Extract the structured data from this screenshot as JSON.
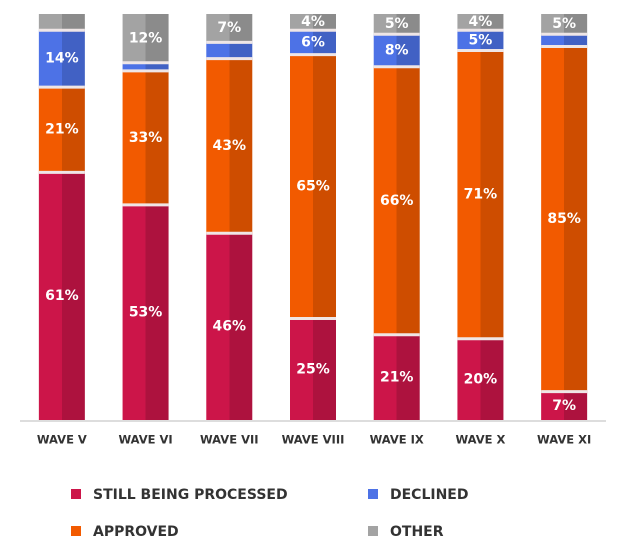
{
  "chart_data": {
    "type": "stacked_bar",
    "categories": [
      "WAVE V",
      "WAVE VI",
      "WAVE VII",
      "WAVE VIII",
      "WAVE IX",
      "WAVE X",
      "WAVE XI"
    ],
    "series": [
      {
        "name": "STILL BEING PROCESSED",
        "color": "#cc1549",
        "values": [
          61,
          53,
          46,
          25,
          21,
          20,
          7
        ],
        "value_labels": [
          "61%",
          "53%",
          "46%",
          "25%",
          "21%",
          "20%",
          "7%"
        ]
      },
      {
        "name": "APPROVED",
        "color": "#f25a00",
        "values": [
          21,
          33,
          43,
          65,
          66,
          71,
          85
        ],
        "value_labels": [
          "21%",
          "33%",
          "43%",
          "65%",
          "66%",
          "71%",
          "85%"
        ]
      },
      {
        "name": "DECLINED",
        "color": "#4d72e6",
        "values": [
          14,
          2,
          4,
          6,
          8,
          5,
          3
        ],
        "value_labels": [
          "14%",
          null,
          null,
          "6%",
          "8%",
          "5%",
          null
        ]
      },
      {
        "name": "OTHER",
        "color": "#a3a3a3",
        "values": [
          4,
          12,
          7,
          4,
          5,
          4,
          5
        ],
        "value_labels": [
          null,
          "12%",
          "7%",
          "4%",
          "5%",
          "4%",
          "5%"
        ]
      }
    ]
  }
}
